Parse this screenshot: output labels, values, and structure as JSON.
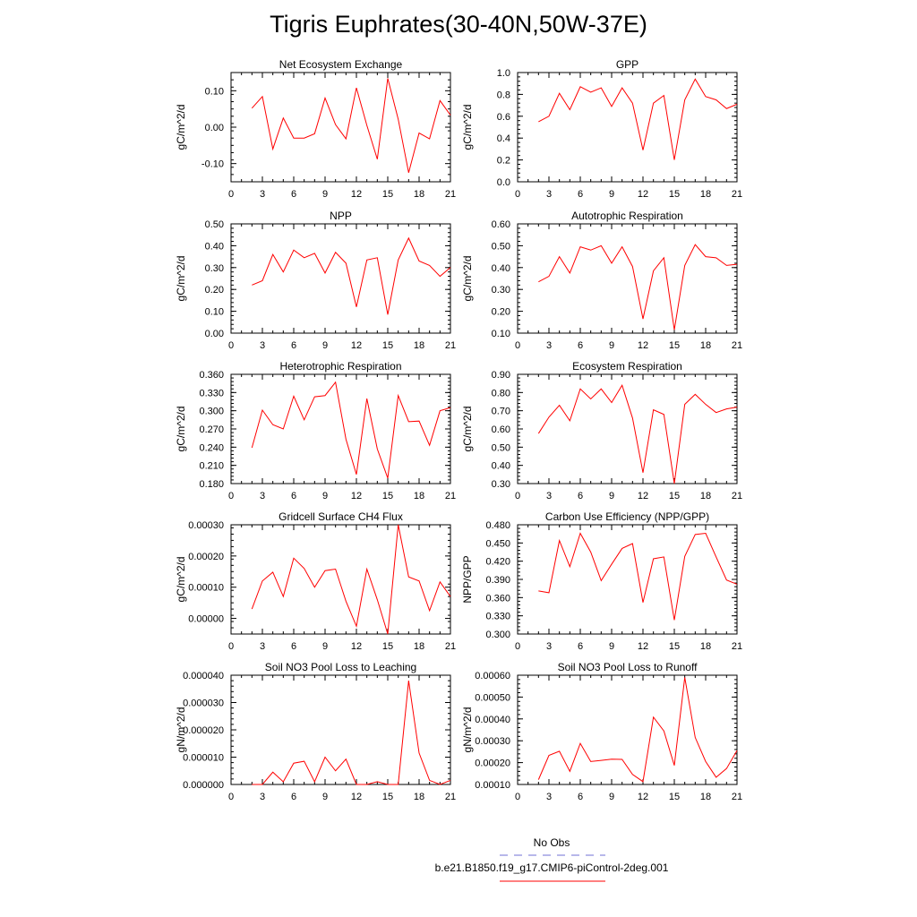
{
  "title": "Tigris Euphrates(30-40N,50W-37E)",
  "legend": {
    "entries": [
      {
        "label": "No Obs",
        "color": "#6f6fd6",
        "style": "dashed"
      },
      {
        "label": "b.e21.B1850.f19_g17.CMIP6-piControl-2deg.001",
        "color": "#ff0000",
        "style": "solid"
      }
    ]
  },
  "line_color": "#ff0000",
  "chart_data": [
    {
      "type": "line",
      "title": "Net Ecosystem Exchange",
      "ylabel": "gC/m^2/d",
      "xlim": [
        0,
        21
      ],
      "ylim": [
        -0.15,
        0.15
      ],
      "xticks": [
        "0",
        "3",
        "6",
        "9",
        "12",
        "15",
        "18",
        "21"
      ],
      "yticks": [
        "-0.10",
        "0.00",
        "0.10"
      ],
      "ytick_values": [
        -0.1,
        0.0,
        0.1
      ],
      "x": [
        2,
        3,
        4,
        5,
        6,
        7,
        8,
        9,
        10,
        11,
        12,
        13,
        14,
        15,
        16,
        17,
        18,
        19,
        20,
        21
      ],
      "series": [
        {
          "values": [
            0.052,
            0.084,
            -0.06,
            0.025,
            -0.03,
            -0.03,
            -0.018,
            0.08,
            0.007,
            -0.032,
            0.108,
            0.005,
            -0.088,
            0.134,
            0.022,
            -0.125,
            -0.016,
            -0.032,
            0.073,
            0.033
          ]
        }
      ]
    },
    {
      "type": "line",
      "title": "GPP",
      "ylabel": "gC/m^2/d",
      "xlim": [
        0,
        21
      ],
      "ylim": [
        0.0,
        1.0
      ],
      "xticks": [
        "0",
        "3",
        "6",
        "9",
        "12",
        "15",
        "18",
        "21"
      ],
      "yticks": [
        "0.0",
        "0.2",
        "0.4",
        "0.6",
        "0.8",
        "1.0"
      ],
      "ytick_values": [
        0,
        0.2,
        0.4,
        0.6,
        0.8,
        1.0
      ],
      "x": [
        2,
        3,
        4,
        5,
        6,
        7,
        8,
        9,
        10,
        11,
        12,
        13,
        14,
        15,
        16,
        17,
        18,
        19,
        20,
        21
      ],
      "series": [
        {
          "values": [
            0.55,
            0.6,
            0.81,
            0.66,
            0.87,
            0.82,
            0.86,
            0.69,
            0.86,
            0.72,
            0.29,
            0.72,
            0.79,
            0.2,
            0.75,
            0.94,
            0.78,
            0.75,
            0.67,
            0.71
          ]
        }
      ]
    },
    {
      "type": "line",
      "title": "NPP",
      "ylabel": "gC/m^2/d",
      "xlim": [
        0,
        21
      ],
      "ylim": [
        0.0,
        0.5
      ],
      "xticks": [
        "0",
        "3",
        "6",
        "9",
        "12",
        "15",
        "18",
        "21"
      ],
      "yticks": [
        "0.00",
        "0.10",
        "0.20",
        "0.30",
        "0.40",
        "0.50"
      ],
      "ytick_values": [
        0,
        0.1,
        0.2,
        0.3,
        0.4,
        0.5
      ],
      "x": [
        2,
        3,
        4,
        5,
        6,
        7,
        8,
        9,
        10,
        11,
        12,
        13,
        14,
        15,
        16,
        17,
        18,
        19,
        20,
        21
      ],
      "series": [
        {
          "values": [
            0.22,
            0.24,
            0.36,
            0.28,
            0.38,
            0.345,
            0.365,
            0.275,
            0.37,
            0.32,
            0.12,
            0.335,
            0.345,
            0.085,
            0.335,
            0.435,
            0.33,
            0.31,
            0.26,
            0.3
          ]
        }
      ]
    },
    {
      "type": "line",
      "title": "Autotrophic Respiration",
      "ylabel": "gC/m^2/d",
      "xlim": [
        0,
        21
      ],
      "ylim": [
        0.1,
        0.6
      ],
      "xticks": [
        "0",
        "3",
        "6",
        "9",
        "12",
        "15",
        "18",
        "21"
      ],
      "yticks": [
        "0.10",
        "0.20",
        "0.30",
        "0.40",
        "0.50",
        "0.60"
      ],
      "ytick_values": [
        0.1,
        0.2,
        0.3,
        0.4,
        0.5,
        0.6
      ],
      "x": [
        2,
        3,
        4,
        5,
        6,
        7,
        8,
        9,
        10,
        11,
        12,
        13,
        14,
        15,
        16,
        17,
        18,
        19,
        20,
        21
      ],
      "series": [
        {
          "values": [
            0.335,
            0.36,
            0.45,
            0.375,
            0.495,
            0.48,
            0.5,
            0.42,
            0.495,
            0.405,
            0.165,
            0.385,
            0.445,
            0.115,
            0.41,
            0.505,
            0.45,
            0.445,
            0.41,
            0.415
          ]
        }
      ]
    },
    {
      "type": "line",
      "title": "Heterotrophic Respiration",
      "ylabel": "gC/m^2/d",
      "xlim": [
        0,
        21
      ],
      "ylim": [
        0.18,
        0.36
      ],
      "xticks": [
        "0",
        "3",
        "6",
        "9",
        "12",
        "15",
        "18",
        "21"
      ],
      "yticks": [
        "0.180",
        "0.210",
        "0.240",
        "0.270",
        "0.300",
        "0.330",
        "0.360"
      ],
      "ytick_values": [
        0.18,
        0.21,
        0.24,
        0.27,
        0.3,
        0.33,
        0.36
      ],
      "x": [
        2,
        3,
        4,
        5,
        6,
        7,
        8,
        9,
        10,
        11,
        12,
        13,
        14,
        15,
        16,
        17,
        18,
        19,
        20,
        21
      ],
      "series": [
        {
          "values": [
            0.239,
            0.301,
            0.277,
            0.27,
            0.324,
            0.285,
            0.323,
            0.325,
            0.347,
            0.253,
            0.195,
            0.32,
            0.237,
            0.189,
            0.325,
            0.282,
            0.283,
            0.243,
            0.3,
            0.305
          ]
        }
      ]
    },
    {
      "type": "line",
      "title": "Ecosystem Respiration",
      "ylabel": "gC/m^2/d",
      "xlim": [
        0,
        21
      ],
      "ylim": [
        0.3,
        0.9
      ],
      "xticks": [
        "0",
        "3",
        "6",
        "9",
        "12",
        "15",
        "18",
        "21"
      ],
      "yticks": [
        "0.30",
        "0.40",
        "0.50",
        "0.60",
        "0.70",
        "0.80",
        "0.90"
      ],
      "ytick_values": [
        0.3,
        0.4,
        0.5,
        0.6,
        0.7,
        0.8,
        0.9
      ],
      "x": [
        2,
        3,
        4,
        5,
        6,
        7,
        8,
        9,
        10,
        11,
        12,
        13,
        14,
        15,
        16,
        17,
        18,
        19,
        20,
        21
      ],
      "series": [
        {
          "values": [
            0.575,
            0.665,
            0.73,
            0.645,
            0.82,
            0.765,
            0.82,
            0.745,
            0.84,
            0.66,
            0.36,
            0.705,
            0.68,
            0.3,
            0.735,
            0.79,
            0.735,
            0.69,
            0.71,
            0.72
          ]
        }
      ]
    },
    {
      "type": "line",
      "title": "Gridcell Surface CH4 Flux",
      "ylabel": "gC/m^2/d",
      "xlim": [
        0,
        21
      ],
      "ylim": [
        -5e-05,
        0.0003
      ],
      "xticks": [
        "0",
        "3",
        "6",
        "9",
        "12",
        "15",
        "18",
        "21"
      ],
      "yticks": [
        "0.00000",
        "0.00010",
        "0.00020",
        "0.00030"
      ],
      "ytick_values": [
        0,
        0.0001,
        0.0002,
        0.0003
      ],
      "x": [
        2,
        3,
        4,
        5,
        6,
        7,
        8,
        9,
        10,
        11,
        12,
        13,
        14,
        15,
        16,
        17,
        18,
        19,
        20,
        21
      ],
      "series": [
        {
          "values": [
            3e-05,
            0.00012,
            0.000148,
            7e-05,
            0.000193,
            0.00016,
            0.0001,
            0.000153,
            0.000158,
            5.5e-05,
            -2.5e-05,
            0.000158,
            6e-05,
            -5e-05,
            0.0003,
            0.000133,
            0.00012,
            2.5e-05,
            0.000117,
            7e-05
          ]
        }
      ]
    },
    {
      "type": "line",
      "title": "Carbon Use Efficiency (NPP/GPP)",
      "ylabel": "NPP/GPP",
      "xlim": [
        0,
        21
      ],
      "ylim": [
        0.3,
        0.48
      ],
      "xticks": [
        "0",
        "3",
        "6",
        "9",
        "12",
        "15",
        "18",
        "21"
      ],
      "yticks": [
        "0.300",
        "0.330",
        "0.360",
        "0.390",
        "0.420",
        "0.450",
        "0.480"
      ],
      "ytick_values": [
        0.3,
        0.33,
        0.36,
        0.39,
        0.42,
        0.45,
        0.48
      ],
      "x": [
        2,
        3,
        4,
        5,
        6,
        7,
        8,
        9,
        10,
        11,
        12,
        13,
        14,
        15,
        16,
        17,
        18,
        19,
        20,
        21
      ],
      "series": [
        {
          "values": [
            0.371,
            0.368,
            0.454,
            0.411,
            0.466,
            0.435,
            0.388,
            0.415,
            0.441,
            0.449,
            0.352,
            0.424,
            0.427,
            0.323,
            0.428,
            0.464,
            0.466,
            0.427,
            0.389,
            0.382
          ]
        }
      ]
    },
    {
      "type": "line",
      "title": "Soil NO3 Pool Loss to Leaching",
      "ylabel": "gN/m^2/d",
      "xlim": [
        0,
        21
      ],
      "ylim": [
        0,
        4e-05
      ],
      "xticks": [
        "0",
        "3",
        "6",
        "9",
        "12",
        "15",
        "18",
        "21"
      ],
      "yticks": [
        "0.000000",
        "0.000010",
        "0.000020",
        "0.000030",
        "0.000040"
      ],
      "ytick_values": [
        0,
        1e-05,
        2e-05,
        3e-05,
        4e-05
      ],
      "x": [
        2,
        3,
        4,
        5,
        6,
        7,
        8,
        9,
        10,
        11,
        12,
        13,
        14,
        15,
        16,
        17,
        18,
        19,
        20,
        21
      ],
      "series": [
        {
          "values": [
            0,
            0,
            4.5e-06,
            1e-06,
            7.8e-06,
            8.5e-06,
            1e-06,
            1e-05,
            5e-06,
            9.3e-06,
            0,
            0,
            1e-06,
            0,
            0,
            3.8e-05,
            1.15e-05,
            1.5e-06,
            0,
            1.5e-06
          ]
        }
      ]
    },
    {
      "type": "line",
      "title": "Soil NO3 Pool Loss to Runoff",
      "ylabel": "gN/m^2/d",
      "xlim": [
        0,
        21
      ],
      "ylim": [
        0.0001,
        0.0006
      ],
      "xticks": [
        "0",
        "3",
        "6",
        "9",
        "12",
        "15",
        "18",
        "21"
      ],
      "yticks": [
        "0.00010",
        "0.00020",
        "0.00030",
        "0.00040",
        "0.00050",
        "0.00060"
      ],
      "ytick_values": [
        0.0001,
        0.0002,
        0.0003,
        0.0004,
        0.0005,
        0.0006
      ],
      "x": [
        2,
        3,
        4,
        5,
        6,
        7,
        8,
        9,
        10,
        11,
        12,
        13,
        14,
        15,
        16,
        17,
        18,
        19,
        20,
        21
      ],
      "series": [
        {
          "values": [
            0.000122,
            0.000233,
            0.000252,
            0.00016,
            0.000288,
            0.000205,
            0.00021,
            0.000216,
            0.000215,
            0.000146,
            0.000113,
            0.000408,
            0.000345,
            0.000187,
            0.00059,
            0.000315,
            0.000205,
            0.000133,
            0.000173,
            0.000255
          ]
        }
      ]
    }
  ]
}
